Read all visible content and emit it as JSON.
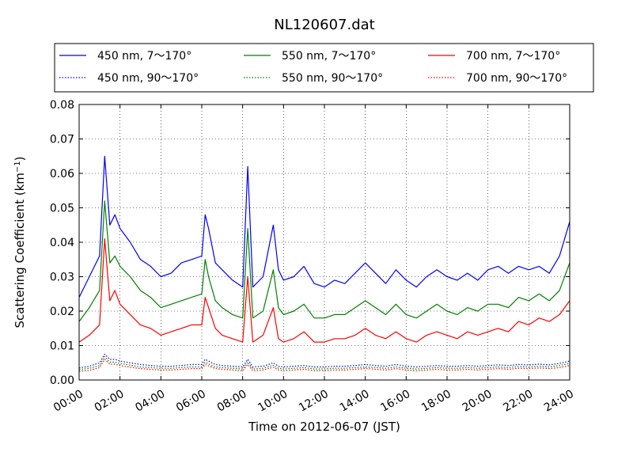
{
  "chart_data": {
    "type": "line",
    "title": "NL120607.dat",
    "xlabel": "Time on 2012-06-07 (JST)",
    "ylabel": "Scattering Coefficient (km",
    "ylabel_exp": "−1",
    "ylabel_close": ")",
    "xlim": [
      "00:00",
      "24:00"
    ],
    "ylim": [
      0,
      0.08
    ],
    "grid": true,
    "legend_position": "top (above plot)",
    "x_ticks": [
      "00:00",
      "02:00",
      "04:00",
      "06:00",
      "08:00",
      "10:00",
      "12:00",
      "14:00",
      "16:00",
      "18:00",
      "20:00",
      "22:00",
      "24:00"
    ],
    "y_ticks": [
      "0.00",
      "0.01",
      "0.02",
      "0.03",
      "0.04",
      "0.05",
      "0.06",
      "0.07",
      "0.08"
    ],
    "x": [
      "00:00",
      "00:30",
      "01:00",
      "01:15",
      "01:30",
      "01:45",
      "02:00",
      "02:30",
      "03:00",
      "03:30",
      "04:00",
      "04:30",
      "05:00",
      "05:30",
      "06:00",
      "06:10",
      "06:20",
      "06:40",
      "07:00",
      "07:30",
      "08:00",
      "08:15",
      "08:30",
      "09:00",
      "09:30",
      "09:45",
      "10:00",
      "10:30",
      "11:00",
      "11:30",
      "12:00",
      "12:30",
      "13:00",
      "13:30",
      "14:00",
      "14:30",
      "15:00",
      "15:30",
      "16:00",
      "16:30",
      "17:00",
      "17:30",
      "18:00",
      "18:30",
      "19:00",
      "19:30",
      "20:00",
      "20:30",
      "21:00",
      "21:30",
      "22:00",
      "22:30",
      "23:00",
      "23:30",
      "24:00"
    ],
    "series": [
      {
        "name": "450 nm, 7～170°",
        "color": "#0000ff",
        "style": "solid",
        "values": [
          0.024,
          0.03,
          0.036,
          0.065,
          0.045,
          0.048,
          0.044,
          0.04,
          0.035,
          0.033,
          0.03,
          0.031,
          0.034,
          0.035,
          0.036,
          0.048,
          0.044,
          0.034,
          0.032,
          0.029,
          0.027,
          0.062,
          0.027,
          0.03,
          0.045,
          0.032,
          0.029,
          0.03,
          0.033,
          0.028,
          0.027,
          0.029,
          0.028,
          0.031,
          0.034,
          0.031,
          0.028,
          0.032,
          0.029,
          0.027,
          0.03,
          0.032,
          0.03,
          0.029,
          0.031,
          0.029,
          0.032,
          0.033,
          0.031,
          0.033,
          0.032,
          0.033,
          0.031,
          0.036,
          0.046
        ]
      },
      {
        "name": "550 nm, 7～170°",
        "color": "#008000",
        "style": "solid",
        "values": [
          0.017,
          0.021,
          0.026,
          0.052,
          0.034,
          0.036,
          0.033,
          0.03,
          0.026,
          0.024,
          0.021,
          0.022,
          0.023,
          0.024,
          0.025,
          0.035,
          0.03,
          0.023,
          0.021,
          0.019,
          0.018,
          0.044,
          0.018,
          0.02,
          0.032,
          0.021,
          0.019,
          0.02,
          0.022,
          0.018,
          0.018,
          0.019,
          0.019,
          0.021,
          0.023,
          0.021,
          0.019,
          0.022,
          0.019,
          0.018,
          0.02,
          0.022,
          0.02,
          0.019,
          0.021,
          0.02,
          0.022,
          0.022,
          0.021,
          0.024,
          0.023,
          0.025,
          0.023,
          0.026,
          0.034
        ]
      },
      {
        "name": "700 nm, 7～170°",
        "color": "#ff0000",
        "style": "solid",
        "values": [
          0.011,
          0.013,
          0.016,
          0.041,
          0.023,
          0.026,
          0.022,
          0.019,
          0.016,
          0.015,
          0.013,
          0.014,
          0.015,
          0.016,
          0.016,
          0.024,
          0.021,
          0.015,
          0.013,
          0.012,
          0.011,
          0.03,
          0.011,
          0.013,
          0.021,
          0.012,
          0.011,
          0.012,
          0.014,
          0.011,
          0.011,
          0.012,
          0.012,
          0.013,
          0.015,
          0.013,
          0.012,
          0.014,
          0.012,
          0.011,
          0.013,
          0.014,
          0.013,
          0.012,
          0.014,
          0.013,
          0.014,
          0.015,
          0.014,
          0.017,
          0.016,
          0.018,
          0.017,
          0.019,
          0.023
        ]
      },
      {
        "name": "450 nm, 90～170°",
        "color": "#0000ff",
        "style": "dotted",
        "values": [
          0.0035,
          0.004,
          0.005,
          0.0075,
          0.006,
          0.006,
          0.0055,
          0.005,
          0.0045,
          0.0042,
          0.004,
          0.004,
          0.0042,
          0.0045,
          0.0045,
          0.006,
          0.0055,
          0.0045,
          0.0042,
          0.004,
          0.0038,
          0.006,
          0.0038,
          0.004,
          0.005,
          0.004,
          0.0038,
          0.004,
          0.0042,
          0.0038,
          0.0038,
          0.004,
          0.004,
          0.0042,
          0.0045,
          0.0042,
          0.004,
          0.0045,
          0.004,
          0.0038,
          0.004,
          0.0042,
          0.004,
          0.004,
          0.0042,
          0.004,
          0.0042,
          0.0044,
          0.0042,
          0.0045,
          0.0044,
          0.0046,
          0.0044,
          0.0048,
          0.0055
        ]
      },
      {
        "name": "550 nm, 90～170°",
        "color": "#008000",
        "style": "dotted",
        "values": [
          0.003,
          0.0034,
          0.0042,
          0.0068,
          0.0052,
          0.0052,
          0.0048,
          0.0043,
          0.0038,
          0.0036,
          0.0034,
          0.0034,
          0.0036,
          0.0038,
          0.0038,
          0.0052,
          0.0047,
          0.0038,
          0.0036,
          0.0034,
          0.0032,
          0.0052,
          0.0032,
          0.0034,
          0.0043,
          0.0034,
          0.0032,
          0.0034,
          0.0036,
          0.0032,
          0.0032,
          0.0034,
          0.0034,
          0.0036,
          0.0038,
          0.0036,
          0.0034,
          0.0038,
          0.0034,
          0.0032,
          0.0034,
          0.0036,
          0.0034,
          0.0034,
          0.0036,
          0.0034,
          0.0036,
          0.0038,
          0.0036,
          0.0039,
          0.0038,
          0.004,
          0.0038,
          0.0042,
          0.0048
        ]
      },
      {
        "name": "700 nm, 90～170°",
        "color": "#ff0000",
        "style": "dotted",
        "values": [
          0.0025,
          0.0028,
          0.0036,
          0.006,
          0.0046,
          0.0046,
          0.0042,
          0.0037,
          0.0033,
          0.0031,
          0.0029,
          0.0029,
          0.0031,
          0.0033,
          0.0033,
          0.0045,
          0.0041,
          0.0033,
          0.0031,
          0.0029,
          0.0027,
          0.0045,
          0.0027,
          0.0029,
          0.0037,
          0.0029,
          0.0027,
          0.0029,
          0.0031,
          0.0027,
          0.0027,
          0.0029,
          0.0029,
          0.0031,
          0.0033,
          0.0031,
          0.0029,
          0.0033,
          0.0029,
          0.0027,
          0.0029,
          0.0031,
          0.0029,
          0.0029,
          0.0031,
          0.0029,
          0.0031,
          0.0033,
          0.0031,
          0.0034,
          0.0033,
          0.0035,
          0.0033,
          0.0036,
          0.0042
        ]
      }
    ]
  }
}
